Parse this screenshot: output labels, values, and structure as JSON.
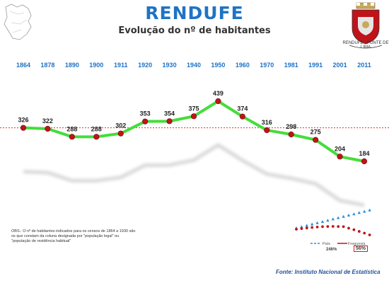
{
  "header": {
    "title": "RENDUFE",
    "subtitle": "Evolução do nº de habitantes"
  },
  "chart_data": {
    "type": "line",
    "title": "Evolução do nº de habitantes",
    "categories": [
      "1864",
      "1878",
      "1890",
      "1900",
      "1911",
      "1920",
      "1930",
      "1940",
      "1950",
      "1960",
      "1970",
      "1981",
      "1991",
      "2001",
      "2011"
    ],
    "series": [
      {
        "values": [
          326,
          322,
          288,
          288,
          302,
          353,
          354,
          375,
          439,
          374,
          316,
          298,
          275,
          204,
          184
        ]
      }
    ],
    "reference_line": 326,
    "ylim": [
      150,
      460
    ],
    "grid": false,
    "colors": {
      "line": "#44dd3a",
      "marker": "#c0131a",
      "reference": "#e03030",
      "years": "#1f73c4"
    }
  },
  "mini_chart": {
    "legend": [
      "País",
      "Freguesia"
    ],
    "percent_pais": "246%",
    "percent_freguesia": "56%",
    "colors": {
      "pais": "#2a8fd6",
      "freguesia": "#c0131a"
    }
  },
  "crest": {
    "caption": "RENDUFE · PONTE DE LIMA"
  },
  "note": "OBS.: O nº de habitantes indicados para os censos de 1864 a 1930 são os que constam da coluna designada por \"população legal\" ou \"população de residência habitual\"",
  "source": "Fonte: Instituto Nacional de Estatística"
}
